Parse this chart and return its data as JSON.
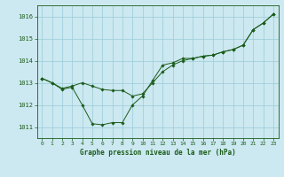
{
  "title": "Graphe pression niveau de la mer (hPa)",
  "background_color": "#cce8f0",
  "grid_color": "#99ccd9",
  "line_color": "#1a5c1a",
  "marker_color": "#1a5c1a",
  "xlim": [
    -0.5,
    23.5
  ],
  "ylim": [
    1010.5,
    1016.5
  ],
  "yticks": [
    1011,
    1012,
    1013,
    1014,
    1015,
    1016
  ],
  "xticks": [
    0,
    1,
    2,
    3,
    4,
    5,
    6,
    7,
    8,
    9,
    10,
    11,
    12,
    13,
    14,
    15,
    16,
    17,
    18,
    19,
    20,
    21,
    22,
    23
  ],
  "series1_x": [
    0,
    1,
    2,
    3,
    4,
    5,
    6,
    7,
    8,
    9,
    10,
    11,
    12,
    13,
    14,
    15,
    16,
    17,
    18,
    19,
    20,
    21,
    22,
    23
  ],
  "series1_y": [
    1013.2,
    1013.0,
    1012.75,
    1012.85,
    1013.0,
    1012.85,
    1012.7,
    1012.65,
    1012.65,
    1012.4,
    1012.5,
    1013.0,
    1013.5,
    1013.8,
    1014.0,
    1014.1,
    1014.2,
    1014.25,
    1014.4,
    1014.5,
    1014.7,
    1015.4,
    1015.7,
    1016.1
  ],
  "series2_x": [
    0,
    1,
    2,
    3,
    4,
    5,
    6,
    7,
    8,
    9,
    10,
    11,
    12,
    13,
    14,
    15,
    16,
    17,
    18,
    19,
    20,
    21,
    22,
    23
  ],
  "series2_y": [
    1013.2,
    1013.0,
    1012.7,
    1012.8,
    1012.0,
    1011.15,
    1011.1,
    1011.2,
    1011.2,
    1012.0,
    1012.4,
    1013.1,
    1013.8,
    1013.9,
    1014.1,
    1014.1,
    1014.2,
    1014.25,
    1014.4,
    1014.5,
    1014.7,
    1015.4,
    1015.7,
    1016.1
  ]
}
